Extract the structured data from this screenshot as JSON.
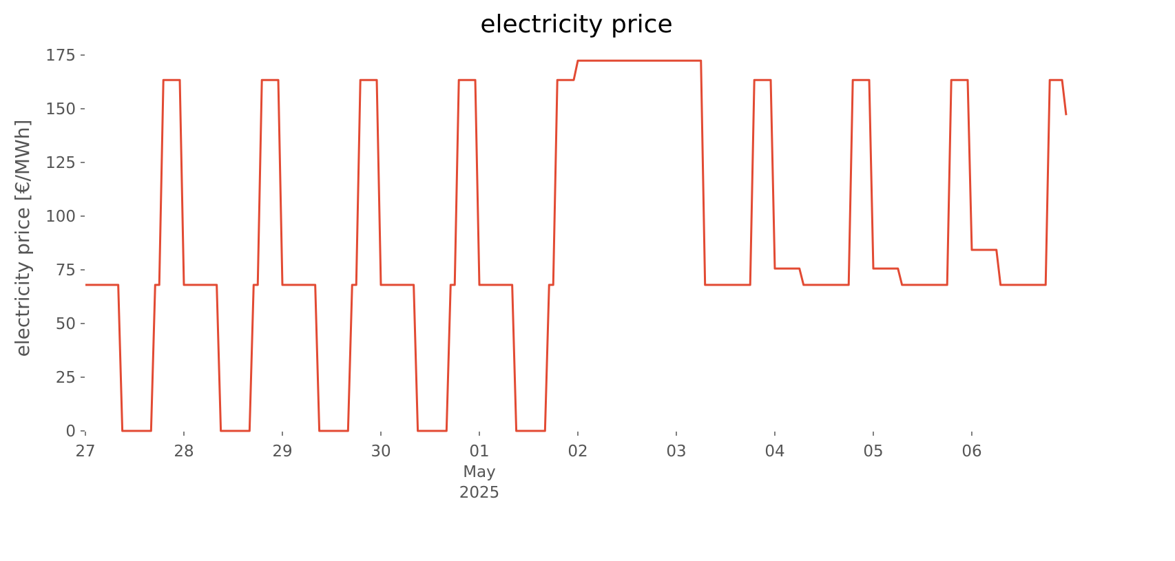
{
  "chart_data": {
    "type": "line",
    "title": "electricity price",
    "ylabel": "electricity price [€/MWh]",
    "x": [
      0,
      8,
      9,
      16,
      17,
      18,
      19,
      23,
      24,
      32,
      33,
      40,
      41,
      42,
      43,
      47,
      48,
      56,
      57,
      64,
      65,
      66,
      67,
      71,
      72,
      80,
      81,
      88,
      89,
      90,
      91,
      95,
      96,
      104,
      105,
      112,
      113,
      114,
      115,
      119,
      120,
      150,
      151,
      162,
      163,
      167,
      168,
      174,
      175,
      186,
      187,
      191,
      192,
      198,
      199,
      210,
      211,
      215,
      216,
      222,
      223,
      234,
      235,
      238,
      239
    ],
    "series": [
      {
        "name": "electricity price",
        "color": "#e24a33",
        "values": [
          68,
          68,
          0,
          0,
          68,
          68,
          163.4,
          163.4,
          68,
          68,
          0,
          0,
          68,
          68,
          163.4,
          163.4,
          68,
          68,
          0,
          0,
          68,
          68,
          163.4,
          163.4,
          68,
          68,
          0,
          0,
          68,
          68,
          163.4,
          163.4,
          68,
          68,
          0,
          0,
          68,
          68,
          163.4,
          163.4,
          172.4,
          172.4,
          68,
          68,
          163.4,
          163.4,
          75.6,
          75.6,
          68,
          68,
          163.4,
          163.4,
          75.6,
          75.6,
          68,
          68,
          163.4,
          163.4,
          84.3,
          84.3,
          68,
          68,
          163.4,
          163.4,
          147
        ]
      }
    ],
    "xlim": [
      0,
      239
    ],
    "xticks": [
      {
        "value": 0,
        "label": "27"
      },
      {
        "value": 24,
        "label": "28"
      },
      {
        "value": 48,
        "label": "29"
      },
      {
        "value": 72,
        "label": "30"
      },
      {
        "value": 96,
        "label": "01\nMay\n2025"
      },
      {
        "value": 120,
        "label": "02"
      },
      {
        "value": 144,
        "label": "03"
      },
      {
        "value": 168,
        "label": "04"
      },
      {
        "value": 192,
        "label": "05"
      },
      {
        "value": 216,
        "label": "06"
      }
    ],
    "ylim": [
      0,
      175
    ],
    "yticks": [
      0,
      25,
      50,
      75,
      100,
      125,
      150,
      175
    ],
    "grid": false
  }
}
